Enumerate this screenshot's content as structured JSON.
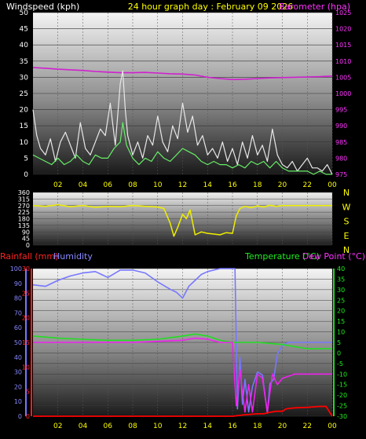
{
  "header": {
    "left_title": "Windspeed (kph)",
    "center_title": "24 hour graph day : February 09 2026",
    "right_title": "Barometer (hpa)"
  },
  "bottom_header": {
    "rain_title": "Rainfall (mm)",
    "humidity_title": "Humidity",
    "temp_title": "Temperature (°C)",
    "dew_title": "Dew Point (°C)"
  },
  "colors": {
    "title_white": "#ffffff",
    "title_yellow": "#ffff00",
    "title_magenta": "#ff33ff",
    "barometer": "#d020d0",
    "gust": "#e8e8e8",
    "wind_avg": "#66ee66",
    "direction": "#eeee00",
    "temperature": "#22dd22",
    "dewpoint": "#ee22ee",
    "humidity": "#7777ff",
    "rainfall": "#ff0000",
    "rain_axis": "#ff2222",
    "hum_axis": "#8888ff",
    "temp_axis": "#22ee22"
  },
  "chart_data": [
    {
      "type": "line",
      "title": "24 hour graph day : February 09 2026",
      "x_ticks": [
        "02",
        "04",
        "06",
        "08",
        "10",
        "12",
        "14",
        "16",
        "18",
        "20",
        "22",
        "00"
      ],
      "y_left_label": "Windspeed (kph)",
      "y_left_ticks": [
        0,
        5,
        10,
        15,
        20,
        25,
        30,
        35,
        40,
        45,
        50
      ],
      "ylim_left": [
        0,
        50
      ],
      "y_right_label": "Barometer (hpa)",
      "y_right_ticks": [
        975,
        980,
        985,
        990,
        995,
        1000,
        1005,
        1010,
        1015,
        1020,
        1025
      ],
      "ylim_right": [
        975,
        1025
      ],
      "series": [
        {
          "name": "Barometer (hpa)",
          "axis": "right",
          "x": [
            0,
            1,
            2,
            3,
            4,
            5,
            6,
            7,
            8,
            9,
            10,
            11,
            12,
            13,
            14,
            15,
            16,
            17,
            18,
            19,
            20,
            21,
            22,
            23,
            24
          ],
          "values": [
            1008,
            1007.8,
            1007.5,
            1007.3,
            1007.1,
            1006.8,
            1006.6,
            1006.4,
            1006.4,
            1006.5,
            1006.3,
            1006.1,
            1006.0,
            1005.7,
            1005.0,
            1004.6,
            1004.3,
            1004.4,
            1004.6,
            1004.8,
            1004.9,
            1005.0,
            1005.1,
            1005.2,
            1005.4
          ]
        },
        {
          "name": "Gust",
          "axis": "left",
          "x": [
            0,
            0.3,
            0.6,
            1,
            1.4,
            1.8,
            2.2,
            2.6,
            3,
            3.4,
            3.8,
            4.2,
            4.6,
            5,
            5.4,
            5.8,
            6.2,
            6.6,
            7,
            7.2,
            7.4,
            7.6,
            8,
            8.4,
            8.8,
            9.2,
            9.6,
            10,
            10.4,
            10.8,
            11.2,
            11.6,
            12,
            12.4,
            12.8,
            13.2,
            13.6,
            14,
            14.4,
            14.8,
            15.2,
            15.6,
            16,
            16.4,
            16.8,
            17.2,
            17.6,
            18,
            18.4,
            18.8,
            19.2,
            19.6,
            20,
            20.4,
            20.8,
            21.2,
            21.6,
            22,
            22.4,
            22.8,
            23.2,
            23.6,
            24
          ],
          "values": [
            20,
            12,
            8,
            6,
            11,
            4,
            10,
            13,
            9,
            5,
            16,
            8,
            6,
            10,
            14,
            12,
            22,
            9,
            28,
            32,
            20,
            12,
            6,
            10,
            5,
            12,
            9,
            18,
            10,
            7,
            15,
            11,
            22,
            13,
            18,
            9,
            12,
            6,
            8,
            5,
            10,
            4,
            8,
            3,
            10,
            5,
            12,
            6,
            9,
            4,
            14,
            6,
            3,
            2,
            4,
            1,
            3,
            5,
            2,
            2,
            1,
            3,
            0
          ]
        },
        {
          "name": "Average",
          "axis": "left",
          "x": [
            0,
            0.5,
            1,
            1.5,
            2,
            2.5,
            3,
            3.5,
            4,
            4.5,
            5,
            5.5,
            6,
            6.5,
            7,
            7.2,
            7.5,
            8,
            8.5,
            9,
            9.5,
            10,
            10.5,
            11,
            11.5,
            12,
            12.5,
            13,
            13.5,
            14,
            14.5,
            15,
            15.5,
            16,
            16.5,
            17,
            17.5,
            18,
            18.5,
            19,
            19.5,
            20,
            20.5,
            21,
            21.5,
            22,
            22.5,
            23,
            23.5,
            24
          ],
          "values": [
            6,
            5,
            4,
            3,
            5,
            3,
            4,
            6,
            4,
            3,
            6,
            5,
            5,
            8,
            10,
            16,
            9,
            5,
            3,
            5,
            4,
            7,
            5,
            4,
            6,
            8,
            7,
            6,
            4,
            3,
            4,
            3,
            3,
            2,
            3,
            2,
            4,
            3,
            4,
            2,
            4,
            2,
            1,
            1,
            1,
            1,
            0,
            1,
            0,
            0
          ]
        }
      ]
    },
    {
      "type": "line",
      "y_left_ticks": [
        0,
        45,
        90,
        135,
        180,
        225,
        270,
        315,
        360
      ],
      "ylim": [
        0,
        360
      ],
      "compass_labels": [
        "N",
        "W",
        "S",
        "E",
        "N"
      ],
      "series": [
        {
          "name": "Wind Direction",
          "x": [
            0,
            1,
            2,
            3,
            4,
            5,
            6,
            7,
            8,
            9,
            10,
            10.5,
            11,
            11.3,
            11.6,
            12,
            12.3,
            12.6,
            13,
            13.5,
            14,
            14.5,
            15,
            15.5,
            16,
            16.3,
            16.6,
            17,
            17.5,
            18,
            18.5,
            19,
            19.5,
            20,
            21,
            22,
            23,
            24
          ],
          "values": [
            270,
            265,
            275,
            262,
            270,
            258,
            265,
            262,
            270,
            265,
            260,
            250,
            150,
            60,
            120,
            210,
            180,
            240,
            70,
            90,
            80,
            75,
            70,
            85,
            80,
            200,
            250,
            265,
            255,
            268,
            260,
            272,
            265,
            270,
            270,
            270,
            270,
            270
          ]
        }
      ]
    },
    {
      "type": "line",
      "x_ticks": [
        "02",
        "04",
        "06",
        "08",
        "10",
        "12",
        "14",
        "16",
        "18",
        "20",
        "22",
        "00"
      ],
      "y_rain_label": "Rainfall (mm)",
      "y_rain_ticks": [
        0,
        5,
        10,
        15,
        20,
        25,
        30
      ],
      "ylim_rain": [
        0,
        30
      ],
      "y_humidity_label": "Humidity",
      "y_humidity_ticks": [
        0,
        10,
        20,
        30,
        40,
        50,
        60,
        70,
        80,
        90,
        100
      ],
      "ylim_humidity": [
        0,
        100
      ],
      "y_temp_label": "Temperature (°C)",
      "y_dew_label": "Dew Point (°C)",
      "y_temp_ticks": [
        -30,
        -25,
        -20,
        -15,
        -10,
        -5,
        0,
        5,
        10,
        15,
        20,
        25,
        30,
        35,
        40
      ],
      "ylim_temp": [
        -30,
        40
      ],
      "series": [
        {
          "name": "Humidity",
          "axis": "humidity",
          "x": [
            0,
            1,
            2,
            3,
            4,
            5,
            6,
            7,
            8,
            9,
            10,
            11,
            11.5,
            12,
            12.5,
            13,
            13.5,
            14,
            15,
            16,
            16.2,
            16.4,
            16.6,
            16.8,
            17,
            17.3,
            17.6,
            18,
            18.4,
            18.8,
            19,
            19.3,
            19.6,
            20,
            20.5,
            21,
            22,
            23,
            24
          ],
          "values": [
            89,
            88,
            92,
            95,
            97,
            98,
            94,
            99,
            99,
            97,
            91,
            86,
            84,
            80,
            88,
            92,
            96,
            98,
            100,
            100,
            100,
            5,
            40,
            8,
            25,
            3,
            20,
            30,
            28,
            2,
            22,
            25,
            42,
            48,
            50,
            50,
            50,
            50,
            50
          ]
        },
        {
          "name": "Temperature (°C)",
          "axis": "temp",
          "x": [
            0,
            2,
            4,
            6,
            8,
            10,
            12,
            13,
            14,
            15,
            16,
            17,
            18,
            19,
            20,
            21,
            22,
            23,
            24
          ],
          "values": [
            8,
            7,
            6.5,
            6,
            6,
            6.5,
            8,
            9,
            8,
            6,
            5,
            5,
            5,
            4.5,
            4,
            3,
            2,
            2,
            2
          ]
        },
        {
          "name": "Dew Point (°C)",
          "axis": "temp",
          "x": [
            0,
            2,
            4,
            6,
            8,
            10,
            12,
            13,
            14,
            15,
            16,
            16.3,
            16.6,
            17,
            17.3,
            17.6,
            18,
            18.4,
            18.8,
            19.2,
            19.6,
            20,
            20.5,
            21,
            22,
            23,
            24
          ],
          "values": [
            5,
            5,
            5,
            5,
            5,
            5.5,
            6,
            7,
            6.5,
            5,
            5,
            -25,
            -8,
            -28,
            -15,
            -28,
            -10,
            -12,
            -28,
            -10,
            -15,
            -12,
            -11,
            -10,
            -10,
            -10,
            -10
          ]
        },
        {
          "name": "Rainfall (mm)",
          "axis": "rain",
          "x": [
            0,
            2,
            4,
            6,
            8,
            10,
            12,
            14,
            16,
            17,
            18,
            18.5,
            19,
            19.5,
            20,
            20.3,
            20.6,
            21,
            22,
            22.5,
            23,
            23.5,
            24
          ],
          "values": [
            0,
            0,
            0,
            0,
            0,
            0,
            0,
            0,
            0,
            0.3,
            0.5,
            0.5,
            0.8,
            1,
            1,
            1.5,
            1.6,
            1.7,
            1.8,
            1.9,
            2,
            2,
            0
          ]
        }
      ]
    }
  ]
}
